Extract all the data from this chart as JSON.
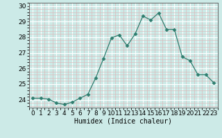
{
  "x": [
    0,
    1,
    2,
    3,
    4,
    5,
    6,
    7,
    8,
    9,
    10,
    11,
    12,
    13,
    14,
    15,
    16,
    17,
    18,
    19,
    20,
    21,
    22,
    23
  ],
  "y": [
    24.1,
    24.1,
    24.05,
    23.8,
    23.7,
    23.85,
    24.1,
    24.35,
    25.4,
    26.65,
    27.95,
    28.15,
    27.45,
    28.2,
    29.35,
    29.1,
    29.55,
    28.5,
    28.5,
    26.75,
    26.5,
    25.6,
    25.6,
    25.1
  ],
  "line_color": "#2e7d6e",
  "marker": "D",
  "marker_size": 2.5,
  "marker_color": "#2e7d6e",
  "bg_color": "#cceae7",
  "plot_bg_color": "#cceae7",
  "major_grid_color": "#ffffff",
  "minor_grid_color": "#dbbcbc",
  "xlabel": "Humidex (Indice chaleur)",
  "xlabel_fontsize": 7,
  "tick_fontsize": 6.5,
  "ylim": [
    23.5,
    30.2
  ],
  "xlim": [
    -0.5,
    23.5
  ],
  "yticks": [
    24,
    25,
    26,
    27,
    28,
    29,
    30
  ],
  "xtick_labels": [
    "0",
    "1",
    "2",
    "3",
    "4",
    "5",
    "6",
    "7",
    "8",
    "9",
    "10",
    "11",
    "12",
    "13",
    "14",
    "15",
    "16",
    "17",
    "18",
    "19",
    "20",
    "21",
    "22",
    "23"
  ]
}
